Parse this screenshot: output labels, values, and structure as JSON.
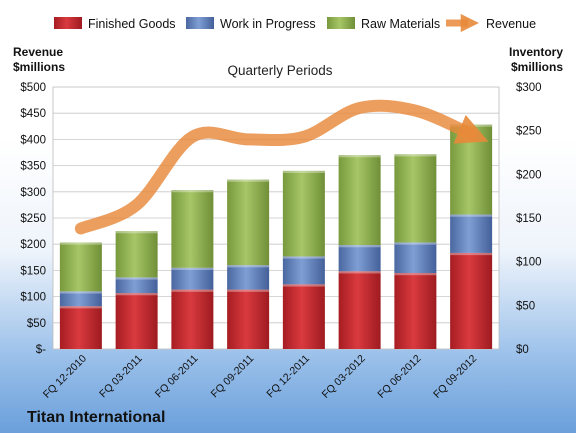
{
  "chart_data": {
    "type": "bar",
    "stacked": true,
    "title": "Quarterly Periods",
    "company": "Titan International",
    "y_left_label": [
      "Revenue",
      "$millions"
    ],
    "y_right_label": [
      "Inventory",
      "$millions"
    ],
    "y_left_range": [
      0,
      500
    ],
    "y_right_range": [
      0,
      300
    ],
    "y_left_ticks": [
      "$-",
      "$50",
      "$100",
      "$150",
      "$200",
      "$250",
      "$300",
      "$350",
      "$400",
      "$450",
      "$500"
    ],
    "y_right_ticks": [
      "$0",
      "$50",
      "$100",
      "$150",
      "$200",
      "$250",
      "$300"
    ],
    "categories": [
      "FQ 12-2010",
      "FQ 03-2011",
      "FQ 06-2011",
      "FQ 09-2011",
      "FQ 12-2011",
      "FQ 03-2012",
      "FQ 06-2012",
      "FQ 09-2012"
    ],
    "series": [
      {
        "name": "Finished Goods",
        "axis": "right",
        "color": "#c0282e",
        "values": [
          49,
          64,
          68,
          68,
          74,
          89,
          87,
          110
        ]
      },
      {
        "name": "Work in Progress",
        "axis": "right",
        "color": "#5b7bb5",
        "values": [
          17,
          18,
          25,
          28,
          32,
          30,
          35,
          44
        ]
      },
      {
        "name": "Raw Materials",
        "axis": "right",
        "color": "#8db04c",
        "values": [
          56,
          53,
          89,
          98,
          98,
          103,
          101,
          103
        ]
      },
      {
        "name": "Revenue",
        "axis": "left",
        "type": "line",
        "color": "#e8893a",
        "values": [
          230,
          275,
          405,
          400,
          405,
          460,
          455,
          410
        ]
      }
    ],
    "legend_position": "top",
    "grid": true
  }
}
